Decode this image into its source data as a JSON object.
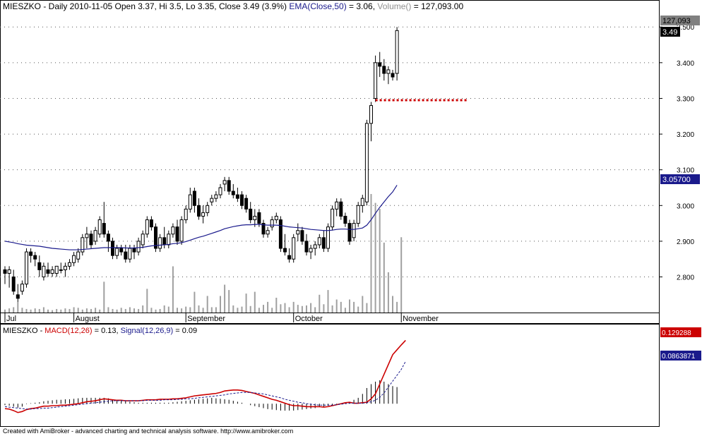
{
  "header_text": {
    "symbol": "MIESZKO",
    "info": " - Daily 2010-11-05 Open 3.37, Hi 3.5, Lo 3.35, Close 3.49 (3.9%) ",
    "ema_label": "EMA(Close,50)",
    "ema_value": " = 3.06, ",
    "volume_label": "Volume()",
    "volume_value": " = 127,093.00"
  },
  "macd_header": {
    "symbol": "MIESZKO",
    "sep": " - ",
    "macd_label": "MACD(12,26)",
    "macd_value": " = 0.13, ",
    "signal_label": "Signal(12,26,9)",
    "signal_value": " = 0.09"
  },
  "footer_text": "Created with AmiBroker - advanced charting and technical analysis software. http://www.amibroker.com",
  "colors": {
    "background": "#ffffff",
    "candle_up": "#ffffff",
    "candle_down": "#000000",
    "ema": "#1a1a8c",
    "volume": "#a0a0a0",
    "macd": "#cc0000",
    "signal": "#1a1a8c",
    "histogram": "#000000",
    "support_line": "#cc0000",
    "grid": "#555555"
  },
  "chart_data": [
    {
      "type": "candlestick",
      "title": "MIESZKO - Daily 2010-11-05 Open 3.37, Hi 3.5, Lo 3.35, Close 3.49 (3.9%)",
      "ylim": [
        2.72,
        3.54
      ],
      "y_ticks": [
        2.8,
        2.9,
        3.0,
        3.1,
        3.2,
        3.3,
        3.4,
        3.5
      ],
      "y_tick_labels": [
        "2.800",
        "2.900",
        "3.000",
        "3.100",
        "3.200",
        "3.300",
        "3.400",
        "3.500"
      ],
      "x_tick_labels": [
        {
          "label": "Jul",
          "index": 0
        },
        {
          "label": "August",
          "index": 16
        },
        {
          "label": "September",
          "index": 42
        },
        {
          "label": "October",
          "index": 67
        },
        {
          "label": "November",
          "index": 92
        }
      ],
      "candles": [
        [
          2.82,
          2.83,
          2.78,
          2.81
        ],
        [
          2.81,
          2.83,
          2.77,
          2.82
        ],
        [
          2.8,
          2.82,
          2.75,
          2.76
        ],
        [
          2.75,
          2.78,
          2.73,
          2.74
        ],
        [
          2.76,
          2.79,
          2.75,
          2.78
        ],
        [
          2.78,
          2.88,
          2.77,
          2.87
        ],
        [
          2.87,
          2.88,
          2.84,
          2.86
        ],
        [
          2.86,
          2.87,
          2.83,
          2.85
        ],
        [
          2.84,
          2.86,
          2.8,
          2.82
        ],
        [
          2.8,
          2.84,
          2.79,
          2.83
        ],
        [
          2.82,
          2.84,
          2.8,
          2.81
        ],
        [
          2.81,
          2.83,
          2.8,
          2.82
        ],
        [
          2.81,
          2.83,
          2.8,
          2.83
        ],
        [
          2.82,
          2.84,
          2.81,
          2.82
        ],
        [
          2.82,
          2.84,
          2.8,
          2.83
        ],
        [
          2.83,
          2.85,
          2.82,
          2.84
        ],
        [
          2.84,
          2.87,
          2.83,
          2.86
        ],
        [
          2.85,
          2.88,
          2.84,
          2.87
        ],
        [
          2.87,
          2.92,
          2.86,
          2.91
        ],
        [
          2.91,
          2.94,
          2.88,
          2.92
        ],
        [
          2.92,
          2.93,
          2.88,
          2.89
        ],
        [
          2.9,
          2.94,
          2.89,
          2.93
        ],
        [
          2.92,
          2.97,
          2.91,
          2.96
        ],
        [
          2.95,
          3.01,
          2.91,
          2.92
        ],
        [
          2.92,
          2.93,
          2.87,
          2.9
        ],
        [
          2.9,
          2.91,
          2.85,
          2.86
        ],
        [
          2.86,
          2.89,
          2.85,
          2.88
        ],
        [
          2.88,
          2.89,
          2.86,
          2.87
        ],
        [
          2.87,
          2.89,
          2.84,
          2.85
        ],
        [
          2.85,
          2.89,
          2.84,
          2.88
        ],
        [
          2.88,
          2.89,
          2.85,
          2.87
        ],
        [
          2.87,
          2.91,
          2.86,
          2.9
        ],
        [
          2.89,
          2.93,
          2.88,
          2.92
        ],
        [
          2.92,
          2.97,
          2.91,
          2.96
        ],
        [
          2.96,
          2.97,
          2.93,
          2.94
        ],
        [
          2.94,
          2.95,
          2.87,
          2.88
        ],
        [
          2.88,
          2.92,
          2.87,
          2.91
        ],
        [
          2.91,
          2.94,
          2.88,
          2.89
        ],
        [
          2.89,
          2.93,
          2.88,
          2.92
        ],
        [
          2.92,
          2.95,
          2.91,
          2.94
        ],
        [
          2.94,
          2.96,
          2.89,
          2.9
        ],
        [
          2.9,
          2.97,
          2.89,
          2.96
        ],
        [
          2.96,
          3.0,
          2.95,
          2.99
        ],
        [
          2.99,
          3.05,
          2.98,
          3.03
        ],
        [
          3.04,
          3.05,
          2.98,
          3.0
        ],
        [
          3.0,
          3.02,
          2.96,
          2.97
        ],
        [
          2.97,
          3.0,
          2.95,
          2.98
        ],
        [
          2.98,
          3.01,
          2.97,
          3.0
        ],
        [
          3.01,
          3.03,
          3.0,
          3.02
        ],
        [
          3.02,
          3.04,
          3.01,
          3.03
        ],
        [
          3.03,
          3.06,
          3.02,
          3.05
        ],
        [
          3.06,
          3.08,
          3.04,
          3.07
        ],
        [
          3.07,
          3.08,
          3.03,
          3.04
        ],
        [
          3.04,
          3.06,
          3.02,
          3.03
        ],
        [
          3.03,
          3.05,
          3.01,
          3.02
        ],
        [
          3.03,
          3.04,
          2.99,
          3.0
        ],
        [
          3.02,
          3.03,
          2.98,
          2.99
        ],
        [
          2.99,
          3.01,
          2.95,
          2.96
        ],
        [
          2.96,
          2.99,
          2.94,
          2.97
        ],
        [
          2.98,
          2.99,
          2.94,
          2.95
        ],
        [
          2.95,
          2.96,
          2.91,
          2.92
        ],
        [
          2.92,
          2.94,
          2.91,
          2.93
        ],
        [
          2.94,
          2.97,
          2.93,
          2.96
        ],
        [
          2.96,
          2.98,
          2.95,
          2.97
        ],
        [
          2.96,
          2.97,
          2.87,
          2.88
        ],
        [
          2.88,
          2.92,
          2.86,
          2.87
        ],
        [
          2.86,
          2.88,
          2.84,
          2.85
        ],
        [
          2.85,
          2.92,
          2.84,
          2.91
        ],
        [
          2.92,
          2.95,
          2.9,
          2.93
        ],
        [
          2.93,
          2.94,
          2.89,
          2.9
        ],
        [
          2.9,
          2.92,
          2.86,
          2.87
        ],
        [
          2.87,
          2.89,
          2.85,
          2.88
        ],
        [
          2.88,
          2.9,
          2.86,
          2.89
        ],
        [
          2.89,
          2.92,
          2.88,
          2.91
        ],
        [
          2.91,
          2.93,
          2.87,
          2.88
        ],
        [
          2.88,
          2.95,
          2.87,
          2.94
        ],
        [
          2.94,
          3.0,
          2.93,
          2.99
        ],
        [
          2.99,
          3.02,
          2.97,
          3.01
        ],
        [
          3.01,
          3.02,
          2.96,
          2.97
        ],
        [
          2.97,
          2.98,
          2.94,
          2.95
        ],
        [
          2.95,
          2.96,
          2.89,
          2.9
        ],
        [
          2.91,
          2.96,
          2.9,
          2.95
        ],
        [
          2.95,
          3.01,
          2.94,
          3.0
        ],
        [
          3.0,
          3.03,
          2.98,
          3.02
        ],
        [
          3.01,
          3.24,
          3.0,
          3.23
        ],
        [
          3.23,
          3.29,
          3.18,
          3.28
        ],
        [
          3.3,
          3.42,
          3.29,
          3.4
        ],
        [
          3.4,
          3.43,
          3.36,
          3.39
        ],
        [
          3.39,
          3.41,
          3.35,
          3.37
        ],
        [
          3.37,
          3.39,
          3.34,
          3.38
        ],
        [
          3.37,
          3.38,
          3.35,
          3.36
        ],
        [
          3.37,
          3.5,
          3.35,
          3.49
        ]
      ],
      "ema": [
        2.9,
        2.898,
        2.896,
        2.893,
        2.891,
        2.889,
        2.888,
        2.887,
        2.886,
        2.884,
        2.882,
        2.88,
        2.879,
        2.878,
        2.877,
        2.876,
        2.876,
        2.876,
        2.877,
        2.878,
        2.879,
        2.88,
        2.881,
        2.882,
        2.882,
        2.882,
        2.882,
        2.882,
        2.881,
        2.881,
        2.881,
        2.882,
        2.883,
        2.885,
        2.887,
        2.888,
        2.889,
        2.89,
        2.891,
        2.893,
        2.894,
        2.896,
        2.899,
        2.903,
        2.907,
        2.911,
        2.914,
        2.918,
        2.922,
        2.926,
        2.93,
        2.935,
        2.938,
        2.941,
        2.943,
        2.945,
        2.946,
        2.946,
        2.947,
        2.947,
        2.946,
        2.945,
        2.945,
        2.945,
        2.944,
        2.942,
        2.94,
        2.939,
        2.938,
        2.937,
        2.935,
        2.933,
        2.932,
        2.931,
        2.93,
        2.93,
        2.931,
        2.933,
        2.934,
        2.934,
        2.933,
        2.933,
        2.935,
        2.937,
        2.945,
        2.96,
        2.978,
        2.995,
        3.01,
        3.025,
        3.038,
        3.057
      ],
      "volume_ylim": [
        0,
        200000
      ],
      "volume": [
        5000,
        7000,
        9000,
        18000,
        8000,
        6000,
        5000,
        7000,
        6000,
        9000,
        5000,
        4000,
        6000,
        5000,
        7000,
        6000,
        9000,
        8000,
        5000,
        7000,
        6000,
        8000,
        5000,
        52000,
        9000,
        6000,
        5000,
        8000,
        6000,
        9000,
        7000,
        6000,
        12000,
        40000,
        8000,
        5000,
        6000,
        12000,
        10000,
        78000,
        8000,
        7000,
        10000,
        9000,
        35000,
        12000,
        8000,
        28000,
        9000,
        9000,
        28000,
        47000,
        38000,
        12000,
        8000,
        10000,
        32000,
        11000,
        35000,
        8000,
        13000,
        18000,
        8000,
        25000,
        14000,
        16000,
        9000,
        18000,
        13000,
        11000,
        12000,
        16000,
        9000,
        30000,
        14000,
        38000,
        12000,
        22000,
        18000,
        8000,
        22000,
        18000,
        10000,
        28000,
        16000,
        200000,
        185000,
        175000,
        118000,
        68000,
        28000,
        18000,
        127093
      ]
    },
    {
      "type": "line",
      "title": "MIESZKO - MACD(12,26) = 0.13, Signal(12,26,9) = 0.09",
      "ylim": [
        -0.04,
        0.14
      ],
      "value_labels": [
        "0.129288",
        "0.0863871"
      ],
      "series": [
        {
          "name": "MACD(12,26)",
          "values": [
            -0.01,
            -0.011,
            -0.014,
            -0.018,
            -0.016,
            -0.012,
            -0.01,
            -0.009,
            -0.007,
            -0.005,
            -0.005,
            -0.004,
            -0.004,
            -0.003,
            -0.003,
            -0.002,
            -0.001,
            0.0,
            0.002,
            0.004,
            0.005,
            0.006,
            0.008,
            0.01,
            0.009,
            0.008,
            0.007,
            0.007,
            0.006,
            0.006,
            0.006,
            0.006,
            0.007,
            0.008,
            0.008,
            0.008,
            0.009,
            0.009,
            0.009,
            0.01,
            0.01,
            0.011,
            0.012,
            0.014,
            0.016,
            0.017,
            0.018,
            0.019,
            0.02,
            0.021,
            0.023,
            0.026,
            0.027,
            0.028,
            0.028,
            0.027,
            0.025,
            0.023,
            0.021,
            0.018,
            0.015,
            0.012,
            0.009,
            0.007,
            0.004,
            0.001,
            -0.002,
            -0.004,
            -0.004,
            -0.005,
            -0.006,
            -0.006,
            -0.006,
            -0.006,
            -0.007,
            -0.006,
            -0.004,
            -0.002,
            0.0,
            0.002,
            0.003,
            0.001,
            0.001,
            0.002,
            0.003,
            0.01,
            0.02,
            0.04,
            0.06,
            0.08,
            0.1,
            0.11,
            0.12,
            0.129288
          ]
        },
        {
          "name": "Signal(12,26,9)",
          "values": [
            -0.006,
            -0.007,
            -0.008,
            -0.009,
            -0.01,
            -0.011,
            -0.011,
            -0.01,
            -0.01,
            -0.009,
            -0.009,
            -0.008,
            -0.007,
            -0.006,
            -0.005,
            -0.004,
            -0.003,
            -0.002,
            -0.001,
            0.0,
            0.001,
            0.002,
            0.003,
            0.004,
            0.005,
            0.006,
            0.006,
            0.006,
            0.006,
            0.006,
            0.006,
            0.006,
            0.006,
            0.007,
            0.007,
            0.007,
            0.007,
            0.008,
            0.008,
            0.008,
            0.009,
            0.009,
            0.01,
            0.01,
            0.011,
            0.012,
            0.013,
            0.014,
            0.015,
            0.016,
            0.017,
            0.018,
            0.02,
            0.021,
            0.022,
            0.023,
            0.023,
            0.023,
            0.022,
            0.021,
            0.02,
            0.018,
            0.016,
            0.014,
            0.012,
            0.009,
            0.007,
            0.005,
            0.003,
            0.002,
            0.0,
            -0.001,
            -0.002,
            -0.003,
            -0.003,
            -0.003,
            -0.003,
            -0.002,
            -0.001,
            0.0,
            0.001,
            0.001,
            0.001,
            0.001,
            0.002,
            0.004,
            0.007,
            0.013,
            0.022,
            0.034,
            0.046,
            0.058,
            0.07,
            0.0863871
          ]
        }
      ],
      "histogram": [
        -0.003,
        -0.004,
        -0.006,
        -0.008,
        -0.006,
        -0.001,
        0.001,
        0.002,
        0.003,
        0.005,
        0.006,
        0.007,
        0.008,
        0.008,
        0.009,
        0.009,
        0.01,
        0.011,
        0.012,
        0.012,
        0.012,
        0.012,
        0.012,
        0.012,
        0.011,
        0.009,
        0.008,
        0.007,
        0.005,
        0.004,
        0.003,
        0.002,
        0.002,
        0.002,
        0.002,
        0.002,
        0.002,
        0.002,
        0.002,
        0.003,
        0.004,
        0.005,
        0.006,
        0.007,
        0.008,
        0.009,
        0.01,
        0.011,
        0.012,
        0.011,
        0.01,
        0.009,
        0.008,
        0.006,
        0.004,
        0.002,
        0.0,
        -0.003,
        -0.005,
        -0.007,
        -0.009,
        -0.011,
        -0.012,
        -0.013,
        -0.014,
        -0.014,
        -0.014,
        -0.014,
        -0.013,
        -0.012,
        -0.011,
        -0.01,
        -0.009,
        -0.007,
        -0.006,
        -0.004,
        -0.003,
        -0.002,
        -0.001,
        0.002,
        0.004,
        0.008,
        0.012,
        0.02,
        0.032,
        0.04,
        0.045,
        0.048,
        0.045,
        0.04,
        0.036,
        0.034
      ]
    }
  ]
}
